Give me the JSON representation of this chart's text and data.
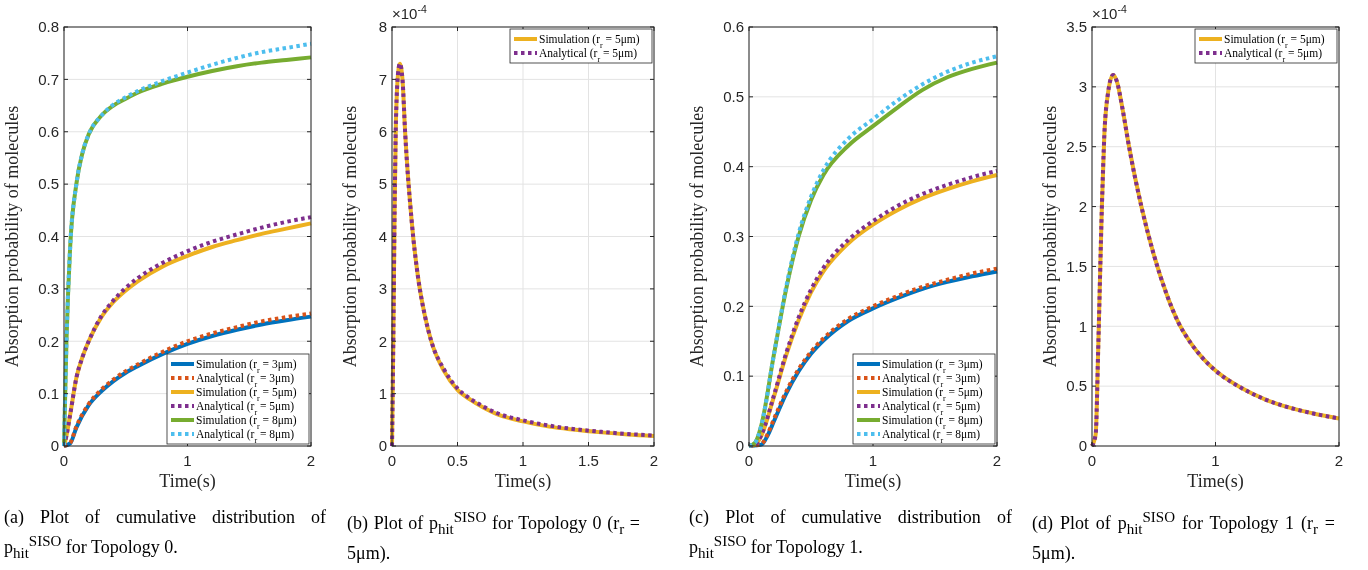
{
  "chart_data": [
    {
      "type": "line",
      "xlabel": "Time(s)",
      "ylabel": "Absorption probability of molecules",
      "xlim": [
        0,
        2
      ],
      "xticks": [
        0,
        1,
        2
      ],
      "ylim": [
        0,
        0.8
      ],
      "yticks": [
        0,
        0.1,
        0.2,
        0.3,
        0.4,
        0.5,
        0.6,
        0.7,
        0.8
      ],
      "grid": true,
      "legend": "bottom right",
      "annotations": [
        "(a) Plot of cumulative distribution of p$_{hit}$$^{SISO}$ for Topology 0."
      ],
      "series": [
        {
          "name": "Simulation (r$_{r}$ = 3μm)",
          "color": "#0072bd",
          "line_style": "solid",
          "x": [
            0,
            0.05,
            0.1,
            0.2,
            0.3,
            0.4,
            0.5,
            0.6,
            0.8,
            1,
            1.2,
            1.4,
            1.6,
            1.8,
            2
          ],
          "values": [
            0,
            0.005,
            0.035,
            0.078,
            0.104,
            0.124,
            0.14,
            0.153,
            0.176,
            0.195,
            0.21,
            0.222,
            0.232,
            0.24,
            0.247
          ]
        },
        {
          "name": "Analytical (r$_{r}$ = 3μm)",
          "color": "#d95319",
          "line_style": "dotted",
          "x": [
            0,
            0.05,
            0.1,
            0.2,
            0.3,
            0.4,
            0.5,
            0.6,
            0.8,
            1,
            1.2,
            1.4,
            1.6,
            1.8,
            2
          ],
          "values": [
            0,
            0.006,
            0.037,
            0.08,
            0.107,
            0.127,
            0.143,
            0.156,
            0.18,
            0.2,
            0.215,
            0.227,
            0.238,
            0.246,
            0.253
          ]
        },
        {
          "name": "Simulation (r$_{r}$ = 5μm)",
          "color": "#edb120",
          "line_style": "solid",
          "x": [
            0,
            0.02,
            0.05,
            0.1,
            0.15,
            0.2,
            0.3,
            0.4,
            0.5,
            0.6,
            0.8,
            1,
            1.2,
            1.4,
            1.6,
            1.8,
            2
          ],
          "values": [
            0,
            0.02,
            0.06,
            0.13,
            0.17,
            0.2,
            0.245,
            0.275,
            0.297,
            0.315,
            0.343,
            0.363,
            0.38,
            0.393,
            0.405,
            0.415,
            0.425
          ]
        },
        {
          "name": "Analytical (r$_{r}$ = 5μm)",
          "color": "#7e2f8e",
          "line_style": "dotted",
          "x": [
            0,
            0.02,
            0.05,
            0.1,
            0.15,
            0.2,
            0.3,
            0.4,
            0.5,
            0.6,
            0.8,
            1,
            1.2,
            1.4,
            1.6,
            1.8,
            2
          ],
          "values": [
            0,
            0.02,
            0.06,
            0.13,
            0.17,
            0.2,
            0.247,
            0.278,
            0.302,
            0.321,
            0.35,
            0.372,
            0.39,
            0.404,
            0.417,
            0.428,
            0.437
          ]
        },
        {
          "name": "Simulation (r$_{r}$ = 8μm)",
          "color": "#77ac30",
          "line_style": "solid",
          "x": [
            0,
            0.02,
            0.05,
            0.1,
            0.15,
            0.2,
            0.3,
            0.4,
            0.5,
            0.6,
            0.8,
            1,
            1.2,
            1.4,
            1.6,
            1.8,
            2
          ],
          "values": [
            0,
            0.2,
            0.38,
            0.5,
            0.56,
            0.595,
            0.63,
            0.65,
            0.663,
            0.675,
            0.692,
            0.705,
            0.716,
            0.725,
            0.732,
            0.737,
            0.742
          ]
        },
        {
          "name": "Analytical (r$_{r}$ = 8μm)",
          "color": "#4dbeee",
          "line_style": "dotted",
          "x": [
            0,
            0.02,
            0.05,
            0.1,
            0.15,
            0.2,
            0.3,
            0.4,
            0.5,
            0.6,
            0.8,
            1,
            1.2,
            1.4,
            1.6,
            1.8,
            2
          ],
          "values": [
            0,
            0.2,
            0.38,
            0.5,
            0.56,
            0.595,
            0.63,
            0.652,
            0.666,
            0.678,
            0.697,
            0.713,
            0.728,
            0.741,
            0.752,
            0.76,
            0.768
          ]
        }
      ]
    },
    {
      "type": "line",
      "xlabel": "Time(s)",
      "ylabel": "Absorption probability of molecules",
      "xlim": [
        0,
        2
      ],
      "xticks": [
        0,
        0.5,
        1,
        1.5,
        2
      ],
      "ylim": [
        0,
        8
      ],
      "yticks": [
        0,
        1,
        2,
        3,
        4,
        5,
        6,
        7,
        8
      ],
      "grid": true,
      "legend": "top right",
      "annotations": [
        "×10$^{-4}$",
        "(b) Plot of p$_{hit}$$^{SISO}$ for Topology 0 (r$_{r}$ = 5μm)."
      ],
      "series": [
        {
          "name": "Simulation (r$_{r}$ = 5μm)",
          "color": "#edb120",
          "line_style": "solid",
          "x": [
            0,
            0.01,
            0.02,
            0.03,
            0.05,
            0.06,
            0.08,
            0.1,
            0.15,
            0.2,
            0.25,
            0.3,
            0.4,
            0.5,
            0.6,
            0.7,
            0.8,
            1,
            1.2,
            1.4,
            1.6,
            1.8,
            2
          ],
          "values": [
            0,
            2,
            4.5,
            6.2,
            7.2,
            7.3,
            7,
            6,
            4.3,
            3.2,
            2.5,
            2,
            1.42,
            1.07,
            0.88,
            0.73,
            0.61,
            0.47,
            0.37,
            0.31,
            0.26,
            0.22,
            0.19
          ]
        },
        {
          "name": "Analytical (r$_{r}$ = 5μm)",
          "color": "#7e2f8e",
          "line_style": "dotted",
          "x": [
            0,
            0.01,
            0.02,
            0.03,
            0.05,
            0.06,
            0.08,
            0.1,
            0.15,
            0.2,
            0.25,
            0.3,
            0.4,
            0.5,
            0.6,
            0.7,
            0.8,
            1,
            1.2,
            1.4,
            1.6,
            1.8,
            2
          ],
          "values": [
            0,
            2,
            4.5,
            6.2,
            7.2,
            7.3,
            7,
            6,
            4.3,
            3.2,
            2.5,
            2,
            1.45,
            1.1,
            0.9,
            0.75,
            0.63,
            0.49,
            0.39,
            0.32,
            0.27,
            0.23,
            0.2
          ]
        }
      ]
    },
    {
      "type": "line",
      "xlabel": "Time(s)",
      "ylabel": "Absorption probability of molecules",
      "xlim": [
        0,
        2
      ],
      "xticks": [
        0,
        1,
        2
      ],
      "ylim": [
        0,
        0.6
      ],
      "yticks": [
        0,
        0.1,
        0.2,
        0.3,
        0.4,
        0.5,
        0.6
      ],
      "grid": true,
      "legend": "bottom right",
      "annotations": [
        "(c) Plot of cumulative distribution of p$_{hit}$$^{SISO}$ for Topology 1."
      ],
      "series": [
        {
          "name": "Simulation (r$_{r}$ = 3μm)",
          "color": "#0072bd",
          "line_style": "solid",
          "x": [
            0,
            0.1,
            0.15,
            0.2,
            0.3,
            0.4,
            0.5,
            0.6,
            0.8,
            1,
            1.2,
            1.4,
            1.6,
            1.8,
            2
          ],
          "values": [
            0,
            0.002,
            0.015,
            0.035,
            0.075,
            0.107,
            0.132,
            0.151,
            0.179,
            0.197,
            0.212,
            0.225,
            0.235,
            0.243,
            0.25
          ]
        },
        {
          "name": "Analytical (r$_{r}$ = 3μm)",
          "color": "#d95319",
          "line_style": "dotted",
          "x": [
            0,
            0.1,
            0.15,
            0.2,
            0.3,
            0.4,
            0.5,
            0.6,
            0.8,
            1,
            1.2,
            1.4,
            1.6,
            1.8,
            2
          ],
          "values": [
            0,
            0.003,
            0.017,
            0.038,
            0.078,
            0.11,
            0.135,
            0.154,
            0.182,
            0.2,
            0.215,
            0.228,
            0.238,
            0.247,
            0.254
          ]
        },
        {
          "name": "Simulation (r$_{r}$ = 5μm)",
          "color": "#edb120",
          "line_style": "solid",
          "x": [
            0,
            0.05,
            0.1,
            0.2,
            0.3,
            0.4,
            0.5,
            0.6,
            0.8,
            1,
            1.2,
            1.4,
            1.6,
            1.8,
            2
          ],
          "values": [
            0,
            0.002,
            0.015,
            0.07,
            0.13,
            0.18,
            0.22,
            0.25,
            0.29,
            0.317,
            0.338,
            0.355,
            0.368,
            0.379,
            0.388
          ]
        },
        {
          "name": "Analytical (r$_{r}$ = 5μm)",
          "color": "#7e2f8e",
          "line_style": "dotted",
          "x": [
            0,
            0.05,
            0.1,
            0.2,
            0.3,
            0.4,
            0.5,
            0.6,
            0.8,
            1,
            1.2,
            1.4,
            1.6,
            1.8,
            2
          ],
          "values": [
            0,
            0.002,
            0.016,
            0.072,
            0.133,
            0.184,
            0.224,
            0.255,
            0.295,
            0.322,
            0.344,
            0.361,
            0.374,
            0.385,
            0.394
          ]
        },
        {
          "name": "Simulation (r$_{r}$ = 8μm)",
          "color": "#77ac30",
          "line_style": "solid",
          "x": [
            0,
            0.05,
            0.1,
            0.2,
            0.3,
            0.4,
            0.5,
            0.6,
            0.8,
            1,
            1.2,
            1.4,
            1.6,
            1.8,
            2
          ],
          "values": [
            0,
            0.005,
            0.03,
            0.13,
            0.225,
            0.3,
            0.352,
            0.388,
            0.43,
            0.458,
            0.485,
            0.51,
            0.528,
            0.54,
            0.549
          ]
        },
        {
          "name": "Analytical (r$_{r}$ = 8μm)",
          "color": "#4dbeee",
          "line_style": "dotted",
          "x": [
            0,
            0.05,
            0.1,
            0.2,
            0.3,
            0.4,
            0.5,
            0.6,
            0.8,
            1,
            1.2,
            1.4,
            1.6,
            1.8,
            2
          ],
          "values": [
            0,
            0.005,
            0.03,
            0.13,
            0.228,
            0.304,
            0.357,
            0.395,
            0.44,
            0.468,
            0.495,
            0.518,
            0.536,
            0.549,
            0.558
          ]
        }
      ]
    },
    {
      "type": "line",
      "xlabel": "Time(s)",
      "ylabel": "Absorption probability of molecules",
      "xlim": [
        0,
        2
      ],
      "xticks": [
        0,
        1,
        2
      ],
      "ylim": [
        0,
        3.5
      ],
      "yticks": [
        0,
        0.5,
        1,
        1.5,
        2,
        2.5,
        3,
        3.5
      ],
      "grid": true,
      "legend": "top right",
      "annotations": [
        "×10$^{-4}$",
        "(d) Plot of p$_{hit}$$^{SISO}$ for Topology 1 (r$_{r}$ = 5μm)."
      ],
      "series": [
        {
          "name": "Simulation (r$_{r}$ = 5μm)",
          "color": "#edb120",
          "line_style": "solid",
          "x": [
            0,
            0.03,
            0.05,
            0.08,
            0.1,
            0.13,
            0.17,
            0.2,
            0.25,
            0.3,
            0.4,
            0.5,
            0.6,
            0.7,
            0.8,
            0.9,
            1,
            1.2,
            1.4,
            1.6,
            1.8,
            2
          ],
          "values": [
            0,
            0.1,
            0.8,
            2,
            2.6,
            2.95,
            3.1,
            3.05,
            2.8,
            2.5,
            2,
            1.6,
            1.28,
            1.03,
            0.86,
            0.73,
            0.63,
            0.49,
            0.39,
            0.32,
            0.27,
            0.23
          ]
        },
        {
          "name": "Analytical (r$_{r}$ = 5μm)",
          "color": "#7e2f8e",
          "line_style": "dotted",
          "x": [
            0,
            0.03,
            0.05,
            0.08,
            0.1,
            0.13,
            0.17,
            0.2,
            0.25,
            0.3,
            0.4,
            0.5,
            0.6,
            0.7,
            0.8,
            0.9,
            1,
            1.2,
            1.4,
            1.6,
            1.8,
            2
          ],
          "values": [
            0,
            0.1,
            0.8,
            2,
            2.6,
            2.95,
            3.1,
            3.05,
            2.8,
            2.5,
            2,
            1.6,
            1.28,
            1.03,
            0.86,
            0.73,
            0.63,
            0.49,
            0.39,
            0.32,
            0.27,
            0.23
          ]
        }
      ]
    }
  ]
}
